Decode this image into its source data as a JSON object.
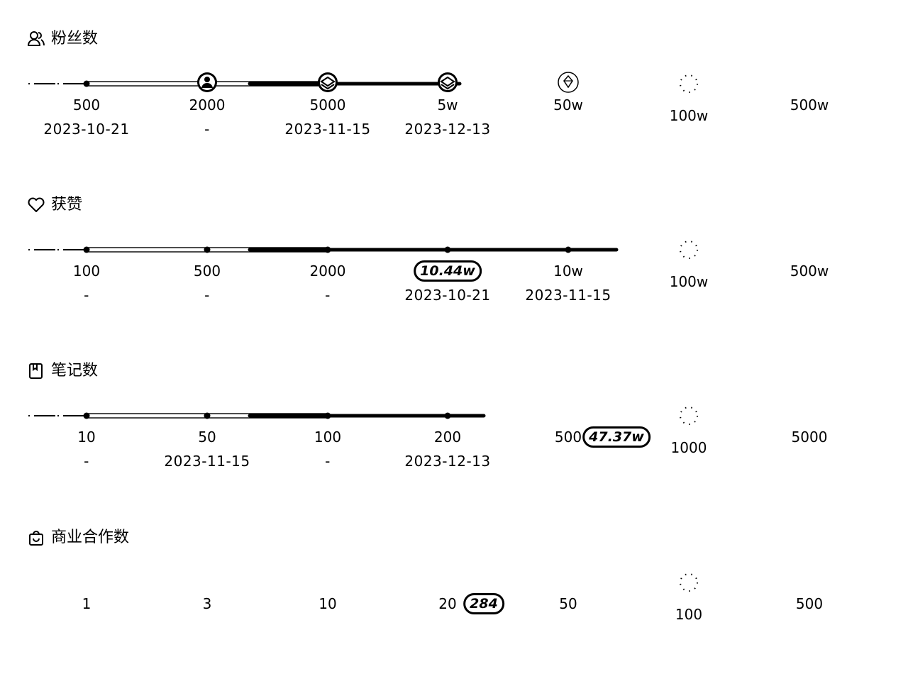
{
  "sections": [
    {
      "id": "fans",
      "title": "粉丝数",
      "icon": "user-group-icon",
      "milestones": [
        {
          "label": "500",
          "date": "2023-10-21",
          "marker": "dot"
        },
        {
          "label": "2000",
          "date": "-",
          "marker": "person-badge-icon"
        },
        {
          "label": "5000",
          "date": "2023-11-15",
          "marker": "layers-badge-icon"
        },
        {
          "label": "5w",
          "date": "2023-12-13",
          "marker": "layers-badge-icon"
        },
        {
          "label": "50w",
          "date": "",
          "marker": "gem-icon"
        },
        {
          "label": "100w",
          "date": "",
          "marker": "locked-ring-icon"
        },
        {
          "label": "500w",
          "date": "",
          "marker": "none"
        }
      ],
      "progress_index": 3.1,
      "current_badge": ""
    },
    {
      "id": "likes",
      "title": "获赞",
      "icon": "heart-icon",
      "milestones": [
        {
          "label": "100",
          "date": "-",
          "marker": "dot"
        },
        {
          "label": "500",
          "date": "-",
          "marker": "dot"
        },
        {
          "label": "2000",
          "date": "-",
          "marker": "dot"
        },
        {
          "label": "",
          "date": "2023-10-21",
          "marker": "dot"
        },
        {
          "label": "10w",
          "date": "2023-11-15",
          "marker": "dot"
        },
        {
          "label": "100w",
          "date": "",
          "marker": "locked-ring-icon"
        },
        {
          "label": "500w",
          "date": "",
          "marker": "none"
        }
      ],
      "progress_index": 4.4,
      "current_badge": "10.44w",
      "current_badge_index": 3
    },
    {
      "id": "notes",
      "title": "笔记数",
      "icon": "notebook-icon",
      "milestones": [
        {
          "label": "10",
          "date": "-",
          "marker": "dot"
        },
        {
          "label": "50",
          "date": "2023-11-15",
          "marker": "dot"
        },
        {
          "label": "100",
          "date": "-",
          "marker": "dot"
        },
        {
          "label": "200",
          "date": "2023-12-13",
          "marker": "dot"
        },
        {
          "label": "500",
          "date": "",
          "marker": "none"
        },
        {
          "label": "1000",
          "date": "",
          "marker": "locked-ring-icon"
        },
        {
          "label": "5000",
          "date": "",
          "marker": "none"
        }
      ],
      "progress_index": 3.3,
      "current_badge": "47.37w",
      "current_badge_index": 4.4
    },
    {
      "id": "brand",
      "title": "商业合作数",
      "icon": "shopping-bag-icon",
      "milestones": [
        {
          "label": "1",
          "date": "",
          "marker": "none"
        },
        {
          "label": "3",
          "date": "",
          "marker": "none"
        },
        {
          "label": "10",
          "date": "",
          "marker": "none"
        },
        {
          "label": "20",
          "date": "",
          "marker": "none"
        },
        {
          "label": "50",
          "date": "",
          "marker": "none"
        },
        {
          "label": "100",
          "date": "",
          "marker": "locked-ring-icon"
        },
        {
          "label": "500",
          "date": "",
          "marker": "none"
        }
      ],
      "progress_index": 0,
      "current_badge": "284",
      "current_badge_index": 3.3
    }
  ]
}
